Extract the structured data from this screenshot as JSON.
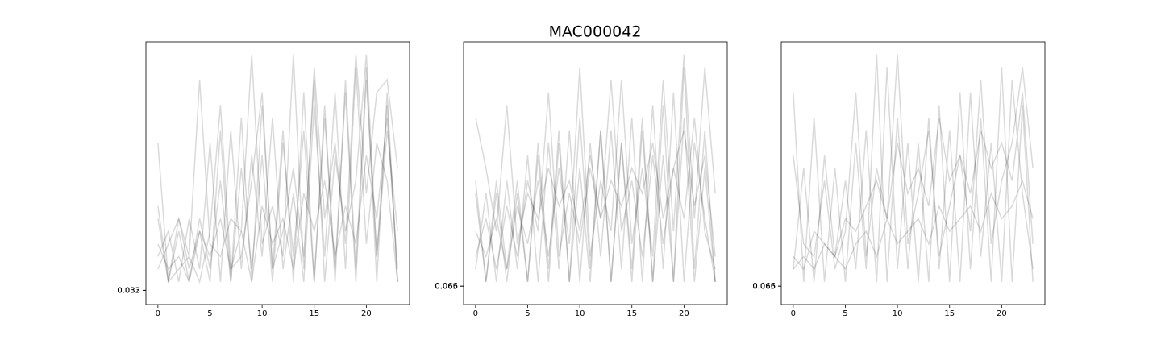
{
  "title": "MAC000042",
  "chart_data": [
    {
      "type": "line",
      "color": "#000000",
      "opacity": 0.15,
      "x": [
        0,
        1,
        2,
        3,
        4,
        5,
        6,
        7,
        8,
        9,
        10,
        11,
        12,
        13,
        14,
        15,
        16,
        17,
        18,
        19,
        20,
        21,
        22,
        23
      ],
      "xlim": [
        -1.15,
        24.15
      ],
      "xticks": [
        0,
        5,
        10,
        15,
        20
      ],
      "ylim": [
        -0.08,
        2.0
      ],
      "yticks": [
        0.032,
        0.033
      ],
      "series": [
        {
          "values": [
            0.6,
            0.1,
            0.5,
            0.1,
            0.6,
            0.2,
            0.9,
            0.1,
            1.0,
            0.2,
            1.1,
            0.1,
            1.2,
            0.3,
            1.3,
            0.1,
            1.4,
            0.2,
            1.6,
            0.1,
            1.7,
            0.3,
            1.5,
            0.1
          ]
        },
        {
          "values": [
            0.3,
            0.5,
            0.1,
            0.6,
            0.2,
            1.2,
            0.1,
            1.3,
            0.2,
            1.1,
            0.3,
            1.4,
            0.2,
            0.8,
            0.1,
            1.5,
            0.3,
            1.6,
            0.2,
            1.8,
            0.4,
            1.2,
            0.9,
            0.1
          ]
        },
        {
          "values": [
            0.4,
            0.2,
            0.3,
            0.1,
            0.5,
            0.3,
            0.6,
            0.2,
            0.5,
            0.1,
            0.7,
            0.4,
            0.6,
            0.2,
            0.8,
            0.5,
            0.9,
            0.3,
            0.7,
            0.4,
            1.1,
            0.6,
            1.4,
            0.2
          ]
        },
        {
          "values": [
            1.2,
            0.1,
            0.2,
            0.3,
            1.7,
            0.4,
            0.3,
            0.6,
            0.5,
            1.9,
            0.4,
            0.7,
            0.3,
            1.9,
            0.2,
            1.8,
            0.6,
            1.2,
            0.4,
            1.9,
            0.8,
            1.6,
            1.7,
            1.0
          ]
        },
        {
          "values": [
            0.2,
            0.4,
            0.6,
            0.3,
            0.1,
            0.5,
            1.5,
            0.2,
            0.3,
            0.9,
            1.6,
            0.2,
            0.5,
            1.0,
            0.3,
            1.7,
            0.1,
            1.1,
            0.5,
            0.9,
            1.9,
            0.3,
            1.3,
            0.5
          ]
        },
        {
          "values": [
            0.7,
            0.1,
            0.6,
            0.2,
            0.5,
            0.1,
            1.3,
            0.1,
            1.4,
            0.1,
            1.5,
            0.2,
            1.3,
            0.1,
            1.6,
            0.1,
            1.5,
            0.1,
            1.7,
            0.2,
            1.8,
            0.1,
            1.6,
            0.1
          ]
        }
      ]
    },
    {
      "type": "line",
      "color": "#000000",
      "opacity": 0.15,
      "x": [
        0,
        1,
        2,
        3,
        4,
        5,
        6,
        7,
        8,
        9,
        10,
        11,
        12,
        13,
        14,
        15,
        16,
        17,
        18,
        19,
        20,
        21,
        22,
        23
      ],
      "xlim": [
        -1.15,
        24.15
      ],
      "xticks": [
        0,
        5,
        10,
        15,
        20
      ],
      "ylim": [
        -0.08,
        2.0
      ],
      "yticks": [
        0.065,
        0.066
      ],
      "series": [
        {
          "values": [
            0.8,
            0.1,
            0.8,
            0.1,
            0.8,
            0.1,
            1.2,
            0.2,
            1.3,
            0.1,
            1.4,
            0.2,
            1.3,
            0.1,
            1.2,
            0.2,
            1.4,
            0.1,
            1.5,
            0.1,
            1.8,
            0.2,
            1.3,
            0.1
          ]
        },
        {
          "values": [
            0.2,
            0.8,
            0.1,
            0.9,
            0.2,
            1.1,
            0.1,
            1.2,
            0.2,
            1.3,
            0.1,
            1.2,
            0.3,
            1.3,
            0.2,
            1.4,
            0.1,
            1.5,
            0.2,
            1.6,
            0.1,
            1.2,
            0.6,
            0.1
          ]
        },
        {
          "values": [
            1.4,
            1.0,
            0.5,
            1.5,
            0.4,
            0.8,
            0.6,
            1.0,
            0.7,
            0.9,
            0.5,
            1.1,
            0.6,
            0.9,
            0.7,
            1.0,
            0.8,
            1.2,
            0.6,
            1.0,
            1.3,
            0.7,
            1.1,
            0.3
          ]
        },
        {
          "values": [
            0.5,
            0.3,
            0.6,
            0.2,
            0.7,
            0.4,
            0.9,
            0.3,
            1.0,
            0.4,
            1.8,
            0.3,
            0.9,
            0.5,
            1.7,
            0.4,
            1.0,
            0.3,
            1.7,
            0.5,
            1.9,
            0.6,
            1.8,
            0.8
          ]
        },
        {
          "values": [
            0.3,
            0.6,
            0.2,
            0.7,
            0.3,
            0.9,
            0.5,
            1.6,
            0.3,
            0.8,
            0.4,
            1.0,
            0.6,
            1.7,
            0.5,
            0.9,
            0.3,
            1.1,
            0.4,
            1.0,
            0.6,
            1.4,
            0.5,
            0.2
          ]
        },
        {
          "values": [
            0.9,
            0.1,
            0.9,
            0.2,
            0.9,
            0.1,
            1.1,
            0.1,
            1.2,
            0.1,
            1.0,
            0.1,
            1.3,
            0.1,
            1.2,
            0.1,
            1.3,
            0.1,
            1.1,
            0.1,
            1.4,
            0.1,
            1.0,
            0.1
          ]
        }
      ]
    },
    {
      "type": "line",
      "color": "#000000",
      "opacity": 0.15,
      "x": [
        0,
        1,
        2,
        3,
        4,
        5,
        6,
        7,
        8,
        9,
        10,
        11,
        12,
        13,
        14,
        15,
        16,
        17,
        18,
        19,
        20,
        21,
        22,
        23
      ],
      "xlim": [
        -1.15,
        24.15
      ],
      "xticks": [
        0,
        5,
        10,
        15,
        20
      ],
      "ylim": [
        -0.08,
        2.0
      ],
      "yticks": [
        0.065,
        0.066
      ],
      "series": [
        {
          "values": [
            1.6,
            0.1,
            1.4,
            0.1,
            1.0,
            0.1,
            1.2,
            0.2,
            1.9,
            0.1,
            1.4,
            0.2,
            1.2,
            0.1,
            1.5,
            0.1,
            1.6,
            0.2,
            1.4,
            0.1,
            1.8,
            0.1,
            1.5,
            0.1
          ]
        },
        {
          "values": [
            0.2,
            1.0,
            0.1,
            1.1,
            0.3,
            0.9,
            0.2,
            1.3,
            0.1,
            1.8,
            0.2,
            1.2,
            0.1,
            1.4,
            0.2,
            1.3,
            0.1,
            1.6,
            0.3,
            1.2,
            0.1,
            1.7,
            0.8,
            0.2
          ]
        },
        {
          "values": [
            0.3,
            0.2,
            0.5,
            0.4,
            0.3,
            0.6,
            0.5,
            0.7,
            0.9,
            0.6,
            1.2,
            0.8,
            1.0,
            0.7,
            1.4,
            0.9,
            1.1,
            0.8,
            1.3,
            1.0,
            1.2,
            0.9,
            1.6,
            0.4
          ]
        },
        {
          "values": [
            1.1,
            0.4,
            0.3,
            0.9,
            0.2,
            0.5,
            1.6,
            0.3,
            1.0,
            0.6,
            1.9,
            0.4,
            0.8,
            1.3,
            0.3,
            0.7,
            1.1,
            0.5,
            1.7,
            0.4,
            0.9,
            1.2,
            1.8,
            1.0
          ]
        },
        {
          "values": [
            0.2,
            0.3,
            0.2,
            0.4,
            0.3,
            0.2,
            0.4,
            0.5,
            0.3,
            0.6,
            0.4,
            0.5,
            0.6,
            0.4,
            0.7,
            0.5,
            0.6,
            0.7,
            0.5,
            0.8,
            0.6,
            0.7,
            0.9,
            0.6
          ]
        }
      ]
    }
  ]
}
